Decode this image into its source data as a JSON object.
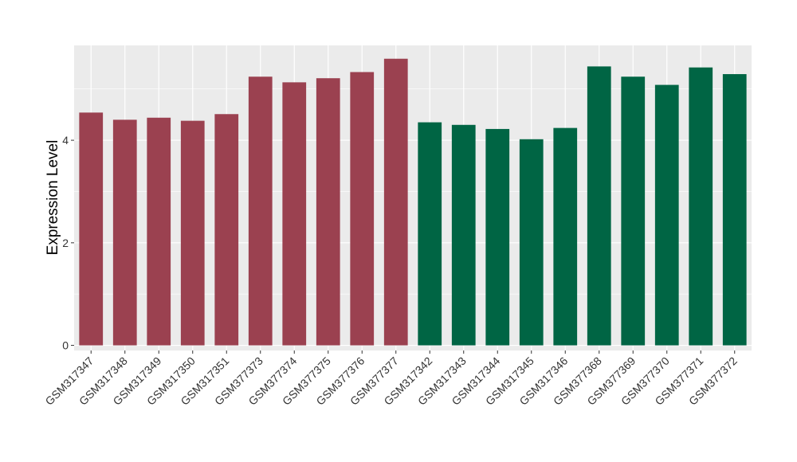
{
  "chart_data": {
    "type": "bar",
    "title": "",
    "xlabel": "",
    "ylabel": "Expression Level",
    "ylim": [
      -0.1,
      5.85
    ],
    "yticks": [
      0,
      2,
      4
    ],
    "grid": true,
    "legend": "none",
    "colors": {
      "group_a": "#9B4150",
      "group_b": "#006544",
      "panel_bg": "#EBEBEB",
      "grid": "#FFFFFF"
    },
    "categories": [
      "GSM317347",
      "GSM317348",
      "GSM317349",
      "GSM317350",
      "GSM317351",
      "GSM377373",
      "GSM377374",
      "GSM377375",
      "GSM377376",
      "GSM377377",
      "GSM317342",
      "GSM317343",
      "GSM317344",
      "GSM317345",
      "GSM317346",
      "GSM377368",
      "GSM377369",
      "GSM377370",
      "GSM377371",
      "GSM377372"
    ],
    "values": [
      4.54,
      4.4,
      4.44,
      4.38,
      4.51,
      5.24,
      5.13,
      5.21,
      5.33,
      5.59,
      4.35,
      4.3,
      4.22,
      4.02,
      4.24,
      5.44,
      5.24,
      5.08,
      5.42,
      5.29
    ],
    "groups": [
      "a",
      "a",
      "a",
      "a",
      "a",
      "a",
      "a",
      "a",
      "a",
      "a",
      "b",
      "b",
      "b",
      "b",
      "b",
      "b",
      "b",
      "b",
      "b",
      "b"
    ]
  }
}
